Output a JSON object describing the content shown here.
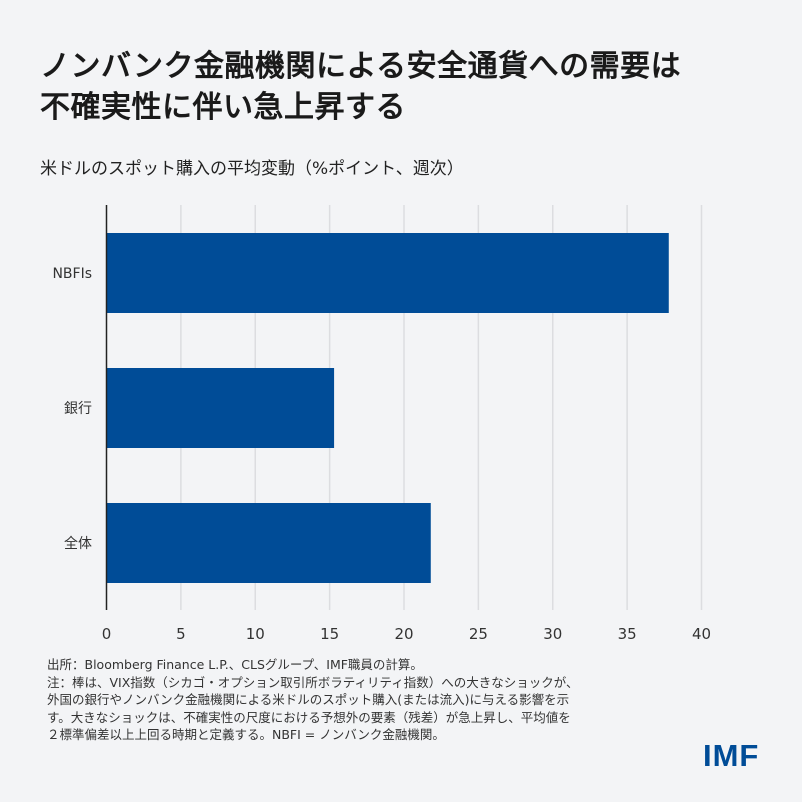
{
  "title": "ノンバンク金融機関による安全通貨への需要は不確実性に伴い急上昇する",
  "title_lines": [
    "ノンバンク金融機関による安全通貨への需要は",
    "不確実性に伴い急上昇する"
  ],
  "subtitle": "米ドルのスポット購入の平均変動（%ポイント、週次）",
  "chart_data": {
    "type": "bar",
    "orientation": "horizontal",
    "categories": [
      "NBFIs",
      "銀行",
      "全体"
    ],
    "values": [
      37.8,
      15.3,
      21.8
    ],
    "xlim": [
      0,
      40
    ],
    "xticks": [
      "0",
      "5",
      "10",
      "15",
      "20",
      "25",
      "30",
      "35",
      "40"
    ],
    "grid": "vertical",
    "bar_color": "#004c97",
    "xlabel": "",
    "ylabel": ""
  },
  "notes": [
    "出所：Bloomberg Finance L.P.、CLSグループ、IMF職員の計算。",
    "注：棒は、VIX指数（シカゴ・オプション取引所ボラティリティ指数）への大きなショックが、",
    "外国の銀行やノンバンク金融機関による米ドルのスポット購入(または流入)に与える影響を示",
    "す。大きなショックは、不確実性の尺度における予想外の要素（残差）が急上昇し、平均値を",
    "２標準偏差以上上回る時期と定義する。NBFI = ノンバンク金融機関。"
  ],
  "logo": "IMF",
  "colors": {
    "background": "#f3f4f6",
    "bar": "#004c97",
    "grid": "#dcdde0",
    "logo": "#004c97"
  }
}
